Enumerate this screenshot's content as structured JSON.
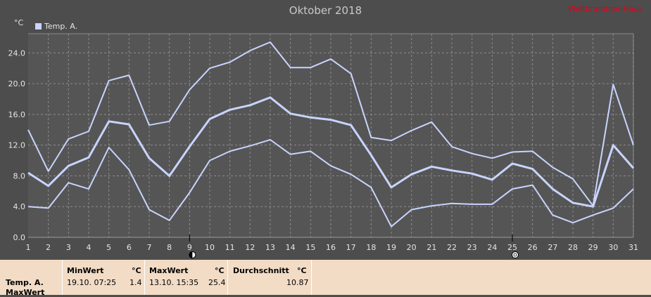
{
  "title": "Oktober 2018",
  "watermark": "Weltbrandner-Haus",
  "unit": "°C",
  "legend": {
    "label": "Temp. A."
  },
  "chart_data": {
    "type": "line",
    "title": "Oktober 2018",
    "ylabel": "°C",
    "xlabel": "",
    "x": [
      1,
      2,
      3,
      4,
      5,
      6,
      7,
      8,
      9,
      10,
      11,
      12,
      13,
      14,
      15,
      16,
      17,
      18,
      19,
      20,
      21,
      22,
      23,
      24,
      25,
      26,
      27,
      28,
      29,
      30,
      31
    ],
    "xlim": [
      1,
      31
    ],
    "ylim": [
      0,
      26.5
    ],
    "yticks": [
      "0.0",
      "4.0",
      "8.0",
      "12.0",
      "16.0",
      "20.0",
      "24.0"
    ],
    "grid": true,
    "legend_position": "top-left",
    "series": [
      {
        "name": "",
        "role": "max",
        "values": [
          14.0,
          8.6,
          12.8,
          13.8,
          20.4,
          21.1,
          14.6,
          15.1,
          19.2,
          22.0,
          22.8,
          24.3,
          25.4,
          22.1,
          22.1,
          23.2,
          21.3,
          13.0,
          12.6,
          13.9,
          15.0,
          11.8,
          10.9,
          10.3,
          11.1,
          11.2,
          9.1,
          7.6,
          4.1,
          19.9,
          12.0
        ]
      },
      {
        "name": "",
        "role": "avg",
        "values": [
          8.4,
          6.7,
          9.3,
          10.4,
          15.1,
          14.7,
          10.3,
          8.0,
          11.8,
          15.4,
          16.6,
          17.2,
          18.2,
          16.1,
          15.6,
          15.3,
          14.6,
          10.7,
          6.5,
          8.2,
          9.2,
          8.7,
          8.3,
          7.5,
          9.6,
          8.9,
          6.3,
          4.5,
          4.0,
          12.0,
          9.0
        ]
      },
      {
        "name": "",
        "role": "min",
        "values": [
          4.0,
          3.8,
          7.1,
          6.3,
          11.7,
          8.8,
          3.6,
          2.2,
          5.8,
          10.0,
          11.2,
          11.9,
          12.7,
          10.8,
          11.2,
          9.3,
          8.2,
          6.5,
          1.4,
          3.6,
          4.1,
          4.4,
          4.3,
          4.3,
          6.3,
          6.8,
          2.9,
          1.9,
          2.9,
          3.8,
          6.3
        ]
      }
    ],
    "markers": [
      {
        "day": 9,
        "icon": "moon-icon"
      },
      {
        "day": 25,
        "icon": "full-moon-icon"
      }
    ],
    "colors": {
      "background": "#4d4d4d",
      "plot": "#555555",
      "line": "#c9d4ff",
      "grid": "#8c8c8c"
    }
  },
  "stats": {
    "row_labels": [
      "Temp. A.",
      "MaxWert"
    ],
    "min": {
      "header": "MinWert",
      "unit": "°C",
      "when": "19.10.  07:25",
      "value": "1.4"
    },
    "max": {
      "header": "MaxWert",
      "unit": "°C",
      "when": "13.10.  15:35",
      "value": "25.4"
    },
    "avg": {
      "header": "Durchschnitt",
      "unit": "°C",
      "value": "10.87"
    }
  }
}
